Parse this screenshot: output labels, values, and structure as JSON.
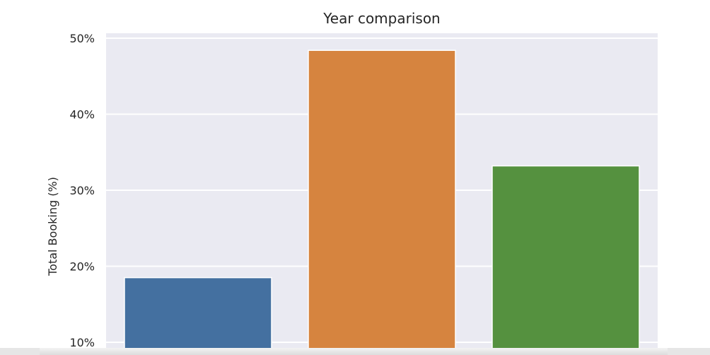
{
  "chart_data": {
    "type": "bar",
    "title": "Year comparison",
    "xlabel": "",
    "ylabel": "Total Booking (%)",
    "categories": [
      "",
      "",
      ""
    ],
    "values": [
      18.5,
      48.4,
      33.2
    ],
    "colors": [
      "#4470a0",
      "#d6843f",
      "#55913f"
    ],
    "y_ticks": [
      10,
      20,
      30,
      40,
      50
    ],
    "y_tick_labels": [
      "10%",
      "20%",
      "30%",
      "40%",
      "50%"
    ],
    "ylim_visible": [
      8.5,
      51
    ],
    "grid": true,
    "background": "#eaeaf2"
  }
}
